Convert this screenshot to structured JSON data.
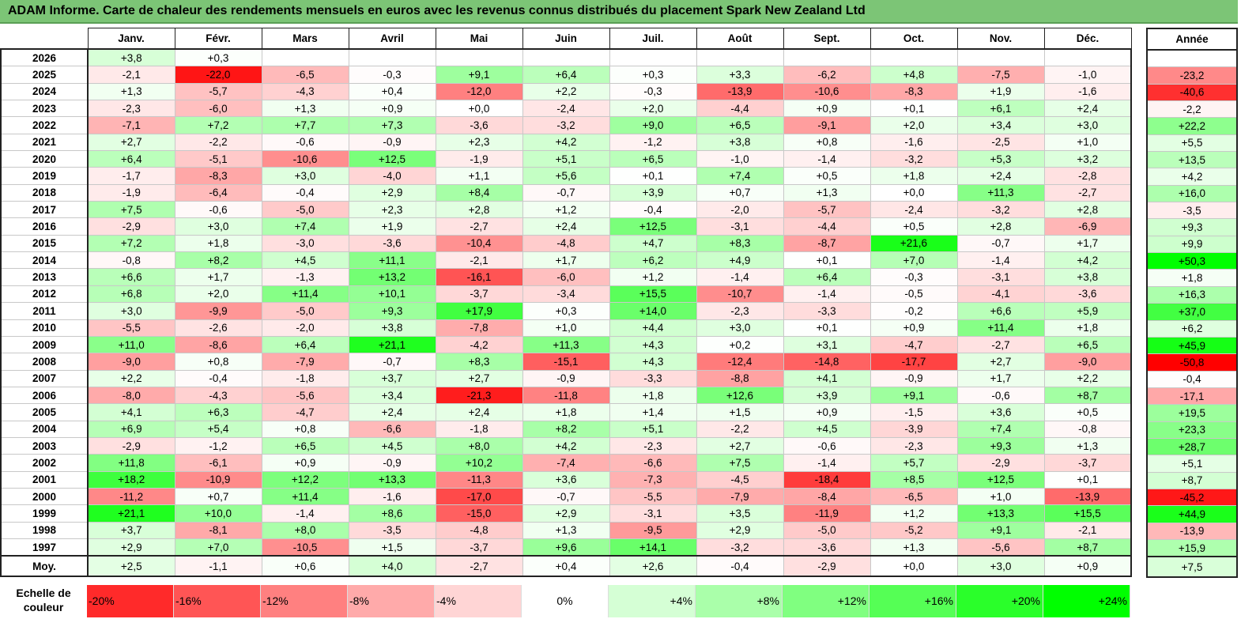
{
  "title": "ADAM Informe. Carte de chaleur des rendements mensuels en euros avec les revenus connus distribués du placement Spark New Zealand Ltd",
  "months": [
    "Janv.",
    "Févr.",
    "Mars",
    "Avril",
    "Mai",
    "Juin",
    "Juil.",
    "Août",
    "Sept.",
    "Oct.",
    "Nov.",
    "Déc."
  ],
  "annual_header": "Année",
  "avg_label": "Moy.",
  "scale_label_lines": [
    "Echelle de",
    "couleur"
  ],
  "scale": [
    "-20%",
    "-16%",
    "-12%",
    "-8%",
    "-4%",
    "0%",
    "+4%",
    "+8%",
    "+12%",
    "+16%",
    "+20%",
    "+24%"
  ],
  "colors": {
    "negative_max": "#ff0000",
    "positive_max": "#00ff00",
    "neutral": "#ffffff",
    "title_bg": "#7cc576"
  },
  "chart_data": {
    "type": "heatmap",
    "title": "ADAM Informe. Carte de chaleur des rendements mensuels en euros avec les revenus connus distribués du placement Spark New Zealand Ltd",
    "columns": [
      "Janv.",
      "Févr.",
      "Mars",
      "Avril",
      "Mai",
      "Juin",
      "Juil.",
      "Août",
      "Sept.",
      "Oct.",
      "Nov.",
      "Déc."
    ],
    "rows": [
      {
        "year": "2026",
        "months": [
          "+3,8",
          "+0,3",
          "",
          "",
          "",
          "",
          "",
          "",
          "",
          "",
          "",
          ""
        ],
        "annual": ""
      },
      {
        "year": "2025",
        "months": [
          "-2,1",
          "-22,0",
          "-6,5",
          "-0,3",
          "+9,1",
          "+6,4",
          "+0,3",
          "+3,3",
          "-6,2",
          "+4,8",
          "-7,5",
          "-1,0"
        ],
        "annual": "-23,2"
      },
      {
        "year": "2024",
        "months": [
          "+1,3",
          "-5,7",
          "-4,3",
          "+0,4",
          "-12,0",
          "+2,2",
          "-0,3",
          "-13,9",
          "-10,6",
          "-8,3",
          "+1,9",
          "-1,6"
        ],
        "annual": "-40,6"
      },
      {
        "year": "2023",
        "months": [
          "-2,3",
          "-6,0",
          "+1,3",
          "+0,9",
          "+0,0",
          "-2,4",
          "+2,0",
          "-4,4",
          "+0,9",
          "+0,1",
          "+6,1",
          "+2,4"
        ],
        "annual": "-2,2"
      },
      {
        "year": "2022",
        "months": [
          "-7,1",
          "+7,2",
          "+7,7",
          "+7,3",
          "-3,6",
          "-3,2",
          "+9,0",
          "+6,5",
          "-9,1",
          "+2,0",
          "+3,4",
          "+3,0"
        ],
        "annual": "+22,2"
      },
      {
        "year": "2021",
        "months": [
          "+2,7",
          "-2,2",
          "-0,6",
          "-0,9",
          "+2,3",
          "+4,2",
          "-1,2",
          "+3,8",
          "+0,8",
          "-1,6",
          "-2,5",
          "+1,0"
        ],
        "annual": "+5,5"
      },
      {
        "year": "2020",
        "months": [
          "+6,4",
          "-5,1",
          "-10,6",
          "+12,5",
          "-1,9",
          "+5,1",
          "+6,5",
          "-1,0",
          "-1,4",
          "-3,2",
          "+5,3",
          "+3,2"
        ],
        "annual": "+13,5"
      },
      {
        "year": "2019",
        "months": [
          "-1,7",
          "-8,3",
          "+3,0",
          "-4,0",
          "+1,1",
          "+5,6",
          "+0,1",
          "+7,4",
          "+0,5",
          "+1,8",
          "+2,4",
          "-2,8"
        ],
        "annual": "+4,2"
      },
      {
        "year": "2018",
        "months": [
          "-1,9",
          "-6,4",
          "-0,4",
          "+2,9",
          "+8,4",
          "-0,7",
          "+3,9",
          "+0,7",
          "+1,3",
          "+0,0",
          "+11,3",
          "-2,7"
        ],
        "annual": "+16,0"
      },
      {
        "year": "2017",
        "months": [
          "+7,5",
          "-0,6",
          "-5,0",
          "+2,3",
          "+2,8",
          "+1,2",
          "-0,4",
          "-2,0",
          "-5,7",
          "-2,4",
          "-3,2",
          "+2,8"
        ],
        "annual": "-3,5"
      },
      {
        "year": "2016",
        "months": [
          "-2,9",
          "+3,0",
          "+7,4",
          "+1,9",
          "-2,7",
          "+2,4",
          "+12,5",
          "-3,1",
          "-4,4",
          "+0,5",
          "+2,8",
          "-6,9"
        ],
        "annual": "+9,3"
      },
      {
        "year": "2015",
        "months": [
          "+7,2",
          "+1,8",
          "-3,0",
          "-3,6",
          "-10,4",
          "-4,8",
          "+4,7",
          "+8,3",
          "-8,7",
          "+21,6",
          "-0,7",
          "+1,7"
        ],
        "annual": "+9,9"
      },
      {
        "year": "2014",
        "months": [
          "-0,8",
          "+8,2",
          "+4,5",
          "+11,1",
          "-2,1",
          "+1,7",
          "+6,2",
          "+4,9",
          "+0,1",
          "+7,0",
          "-1,4",
          "+4,2"
        ],
        "annual": "+50,3"
      },
      {
        "year": "2013",
        "months": [
          "+6,6",
          "+1,7",
          "-1,3",
          "+13,2",
          "-16,1",
          "-6,0",
          "+1,2",
          "-1,4",
          "+6,4",
          "-0,3",
          "-3,1",
          "+3,8"
        ],
        "annual": "+1,8"
      },
      {
        "year": "2012",
        "months": [
          "+6,8",
          "+2,0",
          "+11,4",
          "+10,1",
          "-3,7",
          "-3,4",
          "+15,5",
          "-10,7",
          "-1,4",
          "-0,5",
          "-4,1",
          "-3,6"
        ],
        "annual": "+16,3"
      },
      {
        "year": "2011",
        "months": [
          "+3,0",
          "-9,9",
          "-5,0",
          "+9,3",
          "+17,9",
          "+0,3",
          "+14,0",
          "-2,3",
          "-3,3",
          "-0,2",
          "+6,6",
          "+5,9"
        ],
        "annual": "+37,0"
      },
      {
        "year": "2010",
        "months": [
          "-5,5",
          "-2,6",
          "-2,0",
          "+3,8",
          "-7,8",
          "+1,0",
          "+4,4",
          "+3,0",
          "+0,1",
          "+0,9",
          "+11,4",
          "+1,8"
        ],
        "annual": "+6,2"
      },
      {
        "year": "2009",
        "months": [
          "+11,0",
          "-8,6",
          "+6,4",
          "+21,1",
          "-4,2",
          "+11,3",
          "+4,3",
          "+0,2",
          "+3,1",
          "-4,7",
          "-2,7",
          "+6,5"
        ],
        "annual": "+45,9"
      },
      {
        "year": "2008",
        "months": [
          "-9,0",
          "+0,8",
          "-7,9",
          "-0,7",
          "+8,3",
          "-15,1",
          "+4,3",
          "-12,4",
          "-14,8",
          "-17,7",
          "+2,7",
          "-9,0"
        ],
        "annual": "-50,8"
      },
      {
        "year": "2007",
        "months": [
          "+2,2",
          "-0,4",
          "-1,8",
          "+3,7",
          "+2,7",
          "-0,9",
          "-3,3",
          "-8,8",
          "+4,1",
          "-0,9",
          "+1,7",
          "+2,2"
        ],
        "annual": "-0,4"
      },
      {
        "year": "2006",
        "months": [
          "-8,0",
          "-4,3",
          "-5,6",
          "+3,4",
          "-21,3",
          "-11,8",
          "+1,8",
          "+12,6",
          "+3,9",
          "+9,1",
          "-0,6",
          "+8,7"
        ],
        "annual": "-17,1"
      },
      {
        "year": "2005",
        "months": [
          "+4,1",
          "+6,3",
          "-4,7",
          "+2,4",
          "+2,4",
          "+1,8",
          "+1,4",
          "+1,5",
          "+0,9",
          "-1,5",
          "+3,6",
          "+0,5"
        ],
        "annual": "+19,5"
      },
      {
        "year": "2004",
        "months": [
          "+6,9",
          "+5,4",
          "+0,8",
          "-6,6",
          "-1,8",
          "+8,2",
          "+5,1",
          "-2,2",
          "+4,5",
          "-3,9",
          "+7,4",
          "-0,8"
        ],
        "annual": "+23,3"
      },
      {
        "year": "2003",
        "months": [
          "-2,9",
          "-1,2",
          "+6,5",
          "+4,5",
          "+8,0",
          "+4,2",
          "-2,3",
          "+2,7",
          "-0,6",
          "-2,3",
          "+9,3",
          "+1,3"
        ],
        "annual": "+28,7"
      },
      {
        "year": "2002",
        "months": [
          "+11,8",
          "-6,1",
          "+0,9",
          "-0,9",
          "+10,2",
          "-7,4",
          "-6,6",
          "+7,5",
          "-1,4",
          "+5,7",
          "-2,9",
          "-3,7"
        ],
        "annual": "+5,1"
      },
      {
        "year": "2001",
        "months": [
          "+18,2",
          "-10,9",
          "+12,2",
          "+13,3",
          "-11,3",
          "+3,6",
          "-7,3",
          "-4,5",
          "-18,4",
          "+8,5",
          "+12,5",
          "+0,1"
        ],
        "annual": "+8,7"
      },
      {
        "year": "2000",
        "months": [
          "-11,2",
          "+0,7",
          "+11,4",
          "-1,6",
          "-17,0",
          "-0,7",
          "-5,5",
          "-7,9",
          "-8,4",
          "-6,5",
          "+1,0",
          "-13,9"
        ],
        "annual": "-45,2"
      },
      {
        "year": "1999",
        "months": [
          "+21,1",
          "+10,0",
          "-1,4",
          "+8,6",
          "-15,0",
          "+2,9",
          "-3,1",
          "+3,5",
          "-11,9",
          "+1,2",
          "+13,3",
          "+15,5"
        ],
        "annual": "+44,9"
      },
      {
        "year": "1998",
        "months": [
          "+3,7",
          "-8,1",
          "+8,0",
          "-3,5",
          "-4,8",
          "+1,3",
          "-9,5",
          "+2,9",
          "-5,0",
          "-5,2",
          "+9,1",
          "-2,1"
        ],
        "annual": "-13,9"
      },
      {
        "year": "1997",
        "months": [
          "+2,9",
          "+7,0",
          "-10,5",
          "+1,5",
          "-3,7",
          "+9,6",
          "+14,1",
          "-3,2",
          "-3,6",
          "+1,3",
          "-5,6",
          "+8,7"
        ],
        "annual": "+15,9"
      }
    ],
    "average": {
      "label": "Moy.",
      "months": [
        "+2,5",
        "-1,1",
        "+0,6",
        "+4,0",
        "-2,7",
        "+0,4",
        "+2,6",
        "-0,4",
        "-2,9",
        "+0,0",
        "+3,0",
        "+0,9"
      ],
      "annual": "+7,5"
    },
    "color_scale": {
      "min": -22,
      "max": 24,
      "neutral": 0
    }
  }
}
